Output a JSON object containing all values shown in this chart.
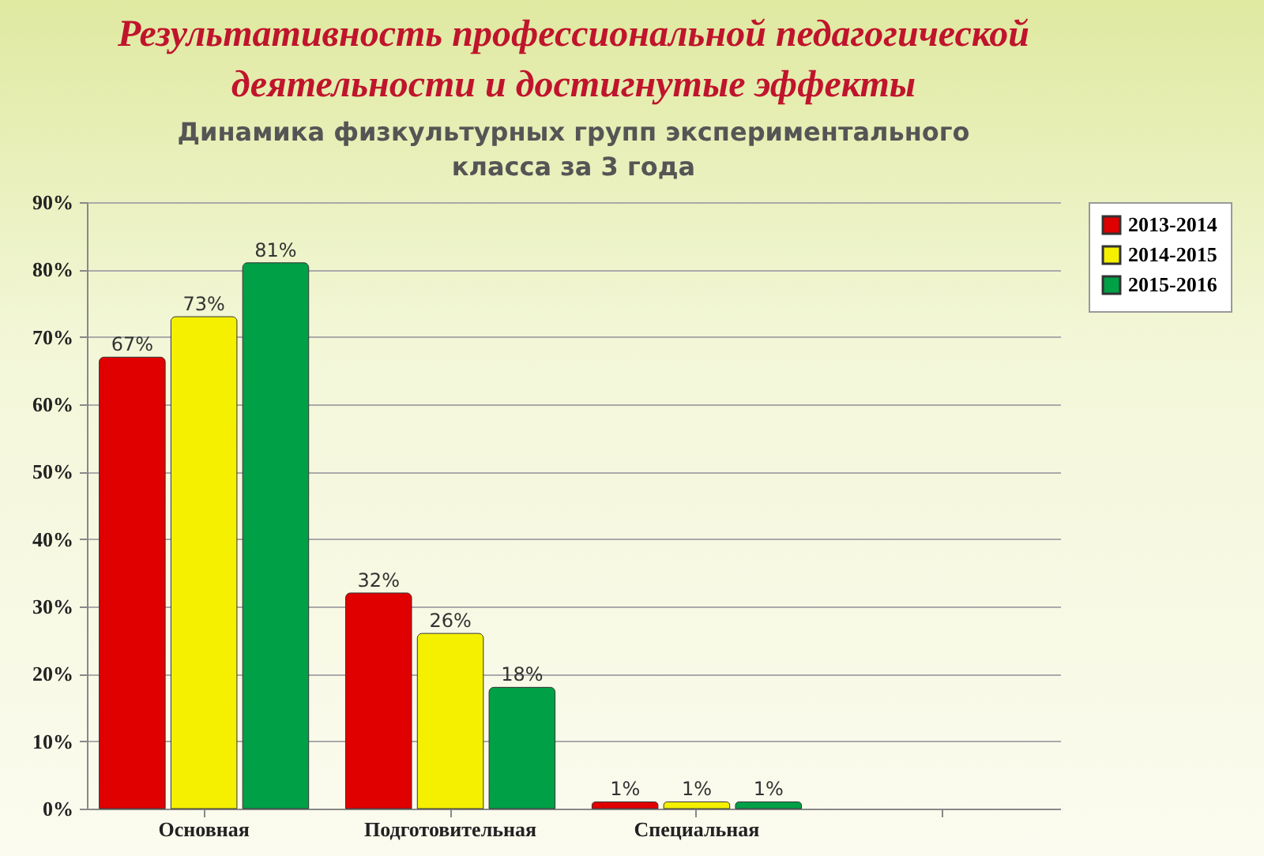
{
  "chart_data": {
    "type": "bar",
    "title": "Результативность профессиональной педагогической деятельности и достигнутые эффекты",
    "subtitle": "Динамика  физкультурных групп  экспериментального класса  за 3 года",
    "categories": [
      "Основная",
      "Подготовительная",
      "Специальная",
      null
    ],
    "series": [
      {
        "name": "2013-2014",
        "color": "#e00000",
        "values": [
          67,
          32,
          1,
          null
        ],
        "value_labels": [
          "67%",
          "32%",
          "1%",
          null
        ]
      },
      {
        "name": "2014-2015",
        "color": "#f5f000",
        "values": [
          73,
          26,
          1,
          null
        ],
        "value_labels": [
          "73%",
          "26%",
          "1%",
          null
        ]
      },
      {
        "name": "2015-2016",
        "color": "#00a046",
        "values": [
          81,
          18,
          1,
          null
        ],
        "value_labels": [
          "81%",
          "18%",
          "1%",
          null
        ]
      }
    ],
    "ylim": [
      0,
      90
    ],
    "yticks": [
      {
        "value": 0,
        "label": "0%"
      },
      {
        "value": 10,
        "label": "10%"
      },
      {
        "value": 20,
        "label": "20%"
      },
      {
        "value": 30,
        "label": "30%"
      },
      {
        "value": 40,
        "label": "40%"
      },
      {
        "value": 50,
        "label": "50%"
      },
      {
        "value": 60,
        "label": "60%"
      },
      {
        "value": 70,
        "label": "70%"
      },
      {
        "value": 80,
        "label": "80%"
      },
      {
        "value": 90,
        "label": "90%"
      }
    ],
    "grid": "y",
    "legend": "right"
  }
}
